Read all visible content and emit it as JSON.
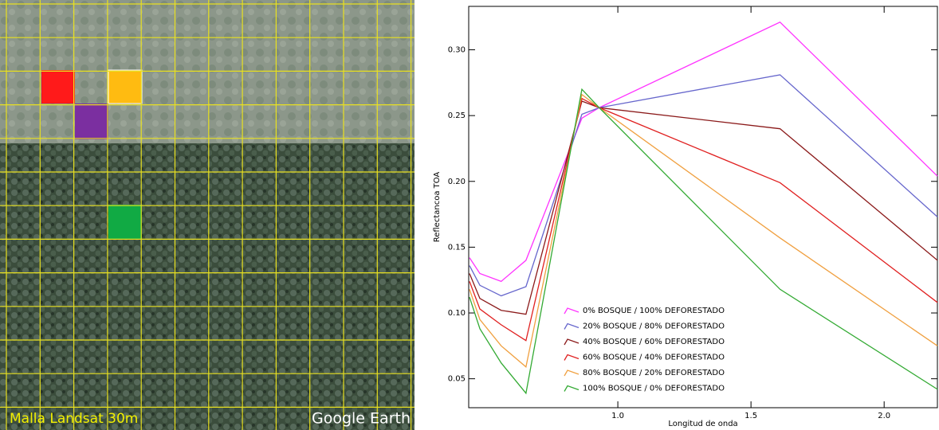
{
  "image": {
    "caption": "Malla Landsat 30m",
    "watermark": "Google Earth"
  },
  "chart_data": {
    "type": "line",
    "x_label": "Longitud de onda",
    "y_label": "Reflectancoa TOA",
    "x": [
      0.443,
      0.482,
      0.562,
      0.655,
      0.865,
      0.93,
      1.609,
      2.2
    ],
    "xlim": [
      0.44,
      2.2
    ],
    "xticks": [
      {
        "value": 1,
        "label": "1.0"
      },
      {
        "value": 1.5,
        "label": "1.5"
      },
      {
        "value": 2,
        "label": "2.0"
      }
    ],
    "ylim": [
      0.028,
      0.333
    ],
    "yticks": [
      0.05,
      {
        "value": 0.1,
        "label": "0.10"
      },
      0.15,
      {
        "value": 0.2,
        "label": "0.20"
      },
      0.25,
      {
        "value": 0.3,
        "label": "0.30"
      }
    ],
    "series": [
      {
        "name": "0% BOSQUE / 100% DEFORESTADO",
        "color": "#ff33ff",
        "values": [
          0.142,
          0.13,
          0.124,
          0.14,
          0.248,
          0.256,
          0.321,
          0.204
        ]
      },
      {
        "name": "20% BOSQUE / 80% DEFORESTADO",
        "color": "#6666cc",
        "values": [
          0.136,
          0.121,
          0.113,
          0.12,
          0.251,
          0.256,
          0.281,
          0.173
        ]
      },
      {
        "name": "40% BOSQUE / 60% DEFORESTADO",
        "color": "#8b1a1a",
        "values": [
          0.13,
          0.111,
          0.102,
          0.099,
          0.261,
          0.256,
          0.24,
          0.14
        ]
      },
      {
        "name": "60% BOSQUE / 40% DEFORESTADO",
        "color": "#e02020",
        "values": [
          0.124,
          0.103,
          0.091,
          0.079,
          0.263,
          0.256,
          0.199,
          0.108
        ]
      },
      {
        "name": "80% BOSQUE / 20% DEFORESTADO",
        "color": "#f0a040",
        "values": [
          0.118,
          0.095,
          0.075,
          0.059,
          0.266,
          0.256,
          0.157,
          0.075
        ]
      },
      {
        "name": "100% BOSQUE / 0% DEFORESTADO",
        "color": "#33aa33",
        "values": [
          0.112,
          0.088,
          0.062,
          0.039,
          0.27,
          0.256,
          0.118,
          0.042
        ]
      }
    ]
  }
}
